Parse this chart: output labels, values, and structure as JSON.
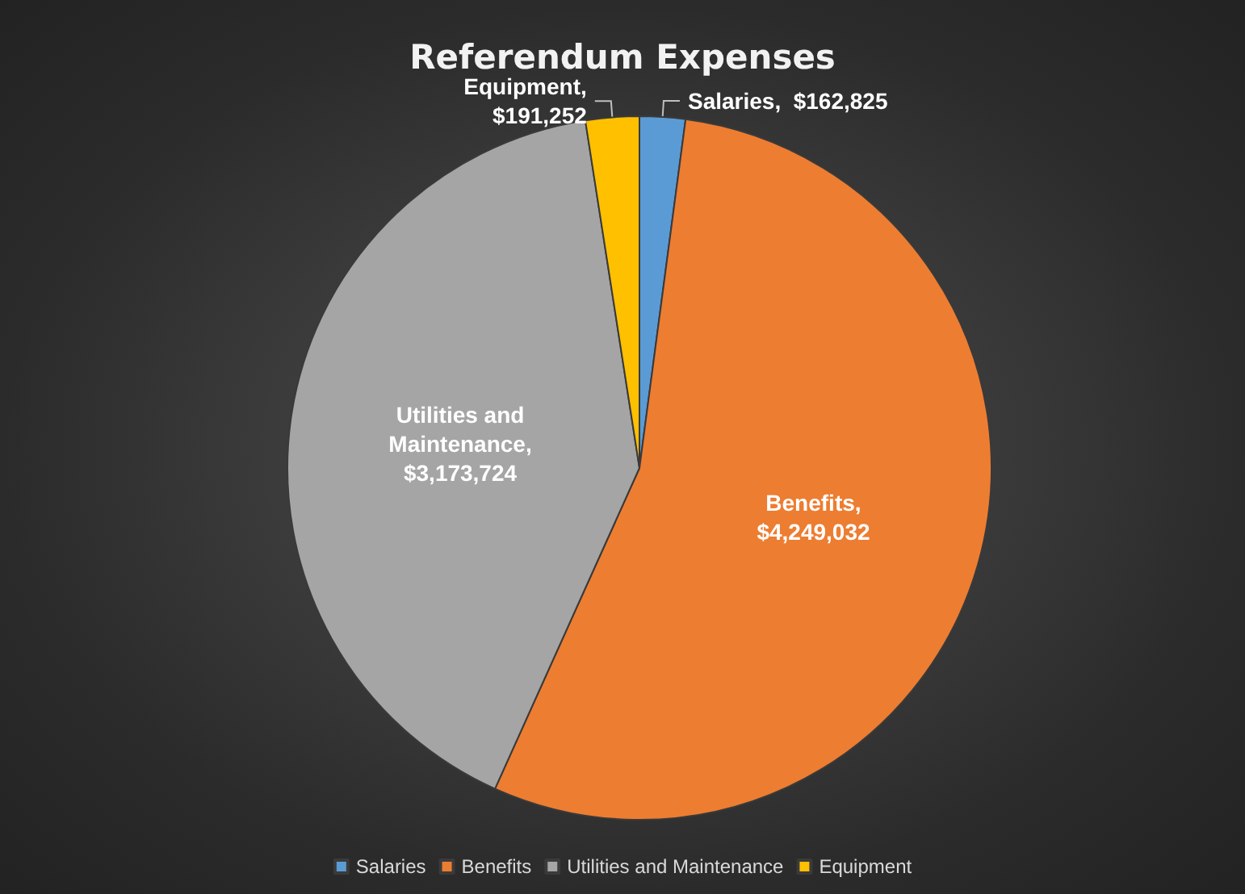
{
  "chart_data": {
    "type": "pie",
    "title": "Referendum Expenses",
    "categories": [
      "Salaries",
      "Benefits",
      "Utilities and Maintenance",
      "Equipment"
    ],
    "values": [
      162825,
      4249032,
      3173724,
      191252
    ],
    "value_labels": [
      "Salaries,  $162,825",
      "Benefits, $4,249,032",
      "Utilities and Maintenance, $3,173,724",
      "Equipment, $191,252"
    ],
    "colors": [
      "#5b9bd5",
      "#ed7d31",
      "#a5a5a5",
      "#ffc000"
    ],
    "legend": "bottom"
  }
}
